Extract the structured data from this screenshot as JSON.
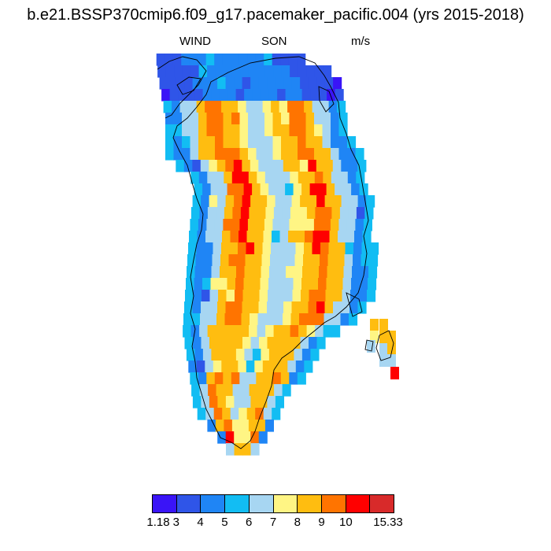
{
  "header": {
    "title": "b.e21.BSSP370cmip6.f09_g17.pacemaker_pacific.004 (yrs 2015-2018)",
    "left_label": "WIND",
    "center_label": "SON",
    "right_label": "m/s"
  },
  "colorbar": {
    "colors": [
      "#3a14f7",
      "#2f55e8",
      "#1f85f5",
      "#12bdf3",
      "#a7d6f2",
      "#fff584",
      "#ffbd10",
      "#ff7400",
      "#ff0000",
      "#d82a2a"
    ],
    "tick_labels": [
      "1.18",
      "3",
      "4",
      "5",
      "6",
      "7",
      "8",
      "9",
      "10",
      "15.33"
    ]
  }
}
